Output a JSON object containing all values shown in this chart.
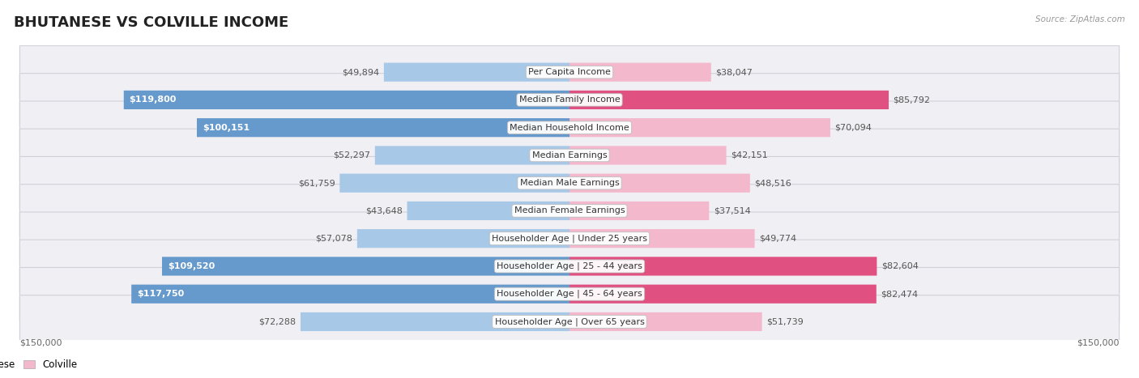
{
  "title": "BHUTANESE VS COLVILLE INCOME",
  "source": "Source: ZipAtlas.com",
  "categories": [
    "Per Capita Income",
    "Median Family Income",
    "Median Household Income",
    "Median Earnings",
    "Median Male Earnings",
    "Median Female Earnings",
    "Householder Age | Under 25 years",
    "Householder Age | 25 - 44 years",
    "Householder Age | 45 - 64 years",
    "Householder Age | Over 65 years"
  ],
  "bhutanese_values": [
    49894,
    119800,
    100151,
    52297,
    61759,
    43648,
    57078,
    109520,
    117750,
    72288
  ],
  "colville_values": [
    38047,
    85792,
    70094,
    42151,
    48516,
    37514,
    49774,
    82604,
    82474,
    51739
  ],
  "bhutanese_labels": [
    "$49,894",
    "$119,800",
    "$100,151",
    "$52,297",
    "$61,759",
    "$43,648",
    "$57,078",
    "$109,520",
    "$117,750",
    "$72,288"
  ],
  "colville_labels": [
    "$38,047",
    "$85,792",
    "$70,094",
    "$42,151",
    "$48,516",
    "$37,514",
    "$49,774",
    "$82,604",
    "$82,474",
    "$51,739"
  ],
  "max_val": 150000,
  "bhutanese_color_light": "#a8c8e8",
  "bhutanese_color_dark": "#6699cc",
  "colville_color_light": "#f4b8cc",
  "colville_color_dark": "#e05080",
  "row_bg_color": "#f0f0f4",
  "row_border_color": "#d0d0d8",
  "axis_label_left": "$150,000",
  "axis_label_right": "$150,000",
  "title_fontsize": 13,
  "label_fontsize": 8,
  "category_fontsize": 8,
  "large_threshold": 80000
}
